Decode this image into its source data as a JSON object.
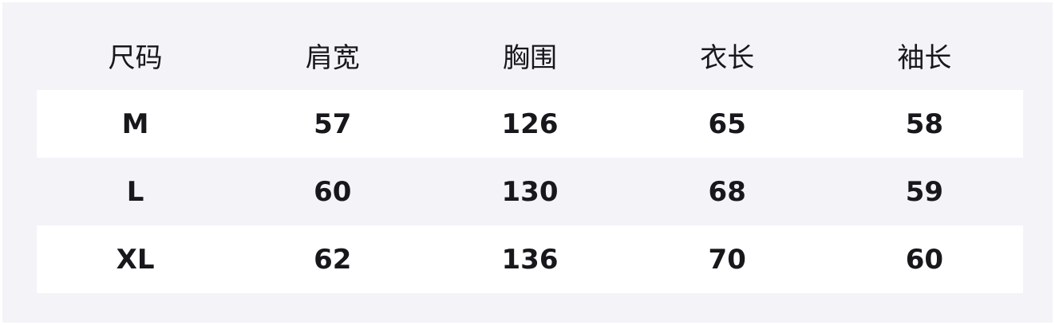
{
  "table": {
    "headers": [
      "尺码",
      "肩宽",
      "胸围",
      "衣长",
      "袖长"
    ],
    "rows": [
      [
        "M",
        "57",
        "126",
        "65",
        "58"
      ],
      [
        "L",
        "60",
        "130",
        "68",
        "59"
      ],
      [
        "XL",
        "62",
        "136",
        "70",
        "60"
      ]
    ]
  },
  "colors": {
    "background": "#f3f3f8",
    "row_highlight": "#ffffff",
    "text": "#17171c"
  }
}
